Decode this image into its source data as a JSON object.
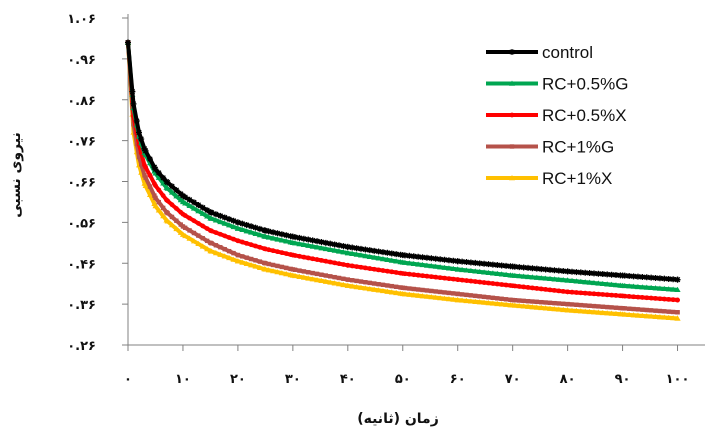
{
  "chart_data": {
    "type": "line",
    "xlabel": "زمان (ثانیه)",
    "ylabel": "نیروی نسبی",
    "xlim": [
      0,
      105
    ],
    "ylim": [
      0.26,
      1.06
    ],
    "x_ticks": [
      0,
      10,
      20,
      30,
      40,
      50,
      60,
      70,
      80,
      90,
      100
    ],
    "x_tick_labels": [
      "۰",
      "۱۰",
      "۲۰",
      "۳۰",
      "۴۰",
      "۵۰",
      "۶۰",
      "۷۰",
      "۸۰",
      "۹۰",
      "۱۰۰"
    ],
    "y_ticks": [
      0.26,
      0.36,
      0.46,
      0.56,
      0.66,
      0.76,
      0.86,
      0.96,
      1.06
    ],
    "y_tick_labels": [
      "۰.۲۶",
      "۰.۳۶",
      "۰.۴۶",
      "۰.۵۶",
      "۰.۶۶",
      "۰.۷۶",
      "۰.۸۶",
      "۰.۹۶",
      "۱.۰۶"
    ],
    "legend_position": "top-right",
    "grid": false,
    "series": [
      {
        "name": "control",
        "color": "#000000",
        "marker": "star",
        "x": [
          0,
          1,
          2,
          3,
          5,
          7,
          10,
          15,
          20,
          25,
          30,
          40,
          50,
          60,
          70,
          80,
          90,
          100
        ],
        "values": [
          1.0,
          0.85,
          0.78,
          0.74,
          0.69,
          0.66,
          0.625,
          0.585,
          0.56,
          0.54,
          0.525,
          0.5,
          0.48,
          0.465,
          0.452,
          0.44,
          0.43,
          0.42
        ]
      },
      {
        "name": "RC+0.5%G",
        "color": "#00a651",
        "marker": "triangle",
        "x": [
          0,
          1,
          2,
          3,
          5,
          7,
          10,
          15,
          20,
          25,
          30,
          40,
          50,
          60,
          70,
          80,
          90,
          100
        ],
        "values": [
          1.0,
          0.84,
          0.77,
          0.73,
          0.68,
          0.645,
          0.61,
          0.57,
          0.545,
          0.525,
          0.51,
          0.485,
          0.462,
          0.445,
          0.43,
          0.418,
          0.405,
          0.395
        ]
      },
      {
        "name": "RC+0.5%X",
        "color": "#ff0000",
        "marker": "circle",
        "x": [
          0,
          1,
          2,
          3,
          5,
          7,
          10,
          15,
          20,
          25,
          30,
          40,
          50,
          60,
          70,
          80,
          90,
          100
        ],
        "values": [
          1.0,
          0.82,
          0.75,
          0.7,
          0.65,
          0.615,
          0.58,
          0.54,
          0.515,
          0.495,
          0.48,
          0.455,
          0.435,
          0.42,
          0.405,
          0.39,
          0.38,
          0.37
        ]
      },
      {
        "name": "RC+1%G",
        "color": "#b5524a",
        "marker": "square",
        "x": [
          0,
          1,
          2,
          3,
          5,
          7,
          10,
          15,
          20,
          25,
          30,
          40,
          50,
          60,
          70,
          80,
          90,
          100
        ],
        "values": [
          1.0,
          0.8,
          0.72,
          0.675,
          0.62,
          0.585,
          0.55,
          0.51,
          0.48,
          0.46,
          0.445,
          0.42,
          0.4,
          0.385,
          0.37,
          0.36,
          0.35,
          0.34
        ]
      },
      {
        "name": "RC+1%X",
        "color": "#ffc000",
        "marker": "triangle",
        "x": [
          0,
          1,
          2,
          3,
          5,
          7,
          10,
          15,
          20,
          25,
          30,
          40,
          50,
          60,
          70,
          80,
          90,
          100
        ],
        "values": [
          1.0,
          0.78,
          0.7,
          0.655,
          0.6,
          0.565,
          0.53,
          0.49,
          0.465,
          0.445,
          0.43,
          0.405,
          0.385,
          0.37,
          0.357,
          0.345,
          0.335,
          0.325
        ]
      }
    ]
  }
}
